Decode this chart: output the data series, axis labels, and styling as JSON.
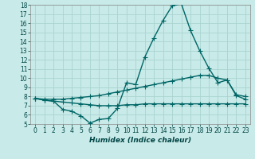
{
  "bg_color": "#c8eae8",
  "grid_color": "#aad4d0",
  "line_color": "#006666",
  "xlabel": "Humidex (Indice chaleur)",
  "xlim": [
    -0.5,
    23.5
  ],
  "ylim": [
    5,
    18
  ],
  "yticks": [
    5,
    6,
    7,
    8,
    9,
    10,
    11,
    12,
    13,
    14,
    15,
    16,
    17,
    18
  ],
  "xticks": [
    0,
    1,
    2,
    3,
    4,
    5,
    6,
    7,
    8,
    9,
    10,
    11,
    12,
    13,
    14,
    15,
    16,
    17,
    18,
    19,
    20,
    21,
    22,
    23
  ],
  "line1_x": [
    0,
    1,
    2,
    3,
    4,
    5,
    6,
    7,
    8,
    9,
    10,
    11,
    12,
    13,
    14,
    15,
    16,
    17,
    18,
    19,
    20,
    21,
    22,
    23
  ],
  "line1_y": [
    7.8,
    7.6,
    7.5,
    6.6,
    6.4,
    5.9,
    5.1,
    5.5,
    5.6,
    6.7,
    9.5,
    9.3,
    12.3,
    14.4,
    16.3,
    17.9,
    18.1,
    15.2,
    13.0,
    11.1,
    9.5,
    9.8,
    8.1,
    7.7
  ],
  "line2_x": [
    0,
    1,
    2,
    3,
    4,
    5,
    6,
    7,
    8,
    9,
    10,
    11,
    12,
    13,
    14,
    15,
    16,
    17,
    18,
    19,
    20,
    21,
    22,
    23
  ],
  "line2_y": [
    7.8,
    7.7,
    7.7,
    7.7,
    7.8,
    7.9,
    8.0,
    8.1,
    8.3,
    8.5,
    8.7,
    8.9,
    9.1,
    9.3,
    9.5,
    9.7,
    9.9,
    10.1,
    10.3,
    10.3,
    10.0,
    9.8,
    8.2,
    8.0
  ],
  "line3_x": [
    0,
    1,
    2,
    3,
    4,
    5,
    6,
    7,
    8,
    9,
    10,
    11,
    12,
    13,
    14,
    15,
    16,
    17,
    18,
    19,
    20,
    21,
    22,
    23
  ],
  "line3_y": [
    7.8,
    7.6,
    7.5,
    7.4,
    7.3,
    7.2,
    7.1,
    7.0,
    7.0,
    7.0,
    7.1,
    7.1,
    7.2,
    7.2,
    7.2,
    7.2,
    7.2,
    7.2,
    7.2,
    7.2,
    7.2,
    7.2,
    7.2,
    7.2
  ],
  "tick_fontsize": 5.5,
  "xlabel_fontsize": 6.5
}
